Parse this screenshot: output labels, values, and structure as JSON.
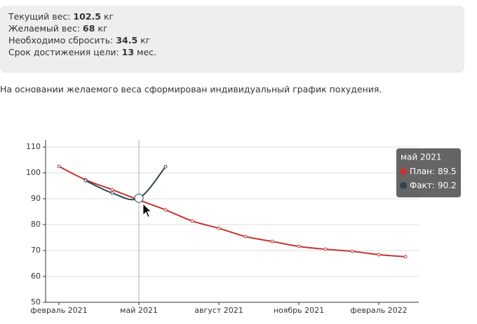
{
  "info": [
    {
      "label": "Текущий вес:",
      "value": 102.5,
      "unit": "кг"
    },
    {
      "label": "Желаемый вес:",
      "value": 68,
      "unit": "кг"
    },
    {
      "label": "Необходимо сбросить:",
      "value": 34.5,
      "unit": "кг"
    },
    {
      "label": "Срок достижения цели:",
      "value": 13,
      "unit": "мес."
    }
  ],
  "description": "На основании желаемого веса сформирован индивидуальный график похудения.",
  "chart_data": {
    "type": "line",
    "categories": [
      "февраль 2021",
      null,
      null,
      "май 2021",
      null,
      null,
      "август 2021",
      null,
      null,
      "ноябрь 2021",
      null,
      null,
      "февраль 2022",
      null
    ],
    "series": [
      {
        "name": "План",
        "color": "#c23531",
        "values": [
          102.5,
          97.3,
          93.5,
          89.5,
          85.7,
          81.4,
          78.6,
          75.4,
          73.5,
          71.6,
          70.5,
          69.7,
          68.4,
          67.6
        ]
      },
      {
        "name": "Факт",
        "color": "#2f4554",
        "values": [
          null,
          97.0,
          92.2,
          90.2,
          102.4,
          null,
          null,
          null,
          null,
          null,
          null,
          null,
          null,
          null
        ]
      }
    ],
    "ylim": [
      50,
      110
    ],
    "yticks": [
      50,
      60,
      70,
      80,
      90,
      100,
      110
    ],
    "grid": true,
    "smooth": true,
    "tooltip": {
      "title": "май 2021",
      "labels": [
        "План:",
        "Факт:"
      ]
    }
  }
}
